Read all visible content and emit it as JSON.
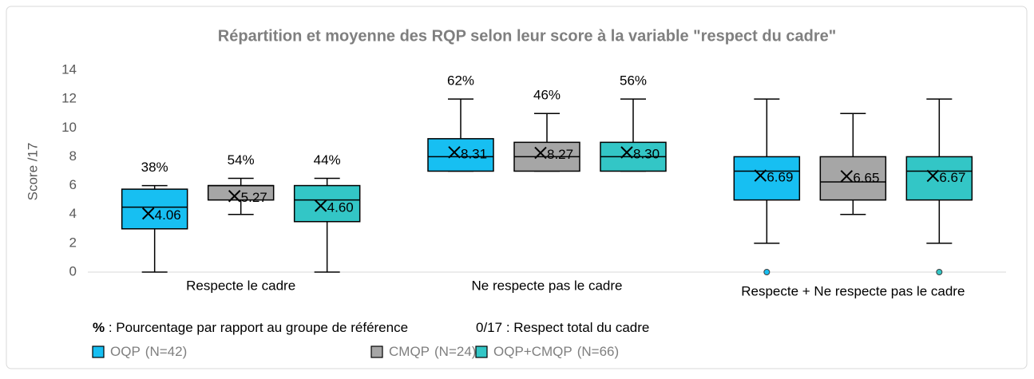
{
  "chart_data": {
    "type": "box",
    "title": "Répartition et moyenne des RQP selon leur score à la variable \"respect du cadre\"",
    "y_label": "Score /17",
    "ylim": [
      0,
      14
    ],
    "yticks": [
      0,
      2,
      4,
      6,
      8,
      10,
      12,
      14
    ],
    "categories": [
      "Respecte le cadre",
      "Ne respecte pas le cadre",
      "Respecte + Ne respecte pas le cadre"
    ],
    "series": [
      {
        "name": "OQP",
        "n_label": "(N=42)",
        "color": "#17bff2",
        "boxes": [
          {
            "min": 0,
            "q1": 3,
            "median": 4.5,
            "q3": 5.75,
            "max": 6,
            "mean": 4.06,
            "mean_label": "4.06",
            "outliers": [],
            "pct": "38%"
          },
          {
            "min": 7,
            "q1": 7,
            "median": 8,
            "q3": 9.25,
            "max": 12,
            "mean": 8.31,
            "mean_label": "8.31",
            "outliers": [],
            "pct": "62%"
          },
          {
            "min": 2,
            "q1": 5,
            "median": 7,
            "q3": 8,
            "max": 12,
            "mean": 6.69,
            "mean_label": "6.69",
            "outliers": [
              0
            ],
            "pct": null
          }
        ]
      },
      {
        "name": "CMQP",
        "n_label": "(N=24)",
        "color": "#a6a6a6",
        "boxes": [
          {
            "min": 4,
            "q1": 5,
            "median": 6,
            "q3": 6,
            "max": 6.5,
            "mean": 5.27,
            "mean_label": "5.27",
            "outliers": [],
            "pct": "54%"
          },
          {
            "min": 7,
            "q1": 7,
            "median": 8,
            "q3": 9,
            "max": 11,
            "mean": 8.27,
            "mean_label": "8.27",
            "outliers": [],
            "pct": "46%"
          },
          {
            "min": 4,
            "q1": 5,
            "median": 6.25,
            "q3": 8,
            "max": 11,
            "mean": 6.65,
            "mean_label": "6.65",
            "outliers": [],
            "pct": null
          }
        ]
      },
      {
        "name": "OQP+CMQP",
        "n_label": "(N=66)",
        "color": "#33c6c6",
        "boxes": [
          {
            "min": 0,
            "q1": 3.5,
            "median": 5,
            "q3": 6,
            "max": 6.5,
            "mean": 4.6,
            "mean_label": "4.60",
            "outliers": [],
            "pct": "44%"
          },
          {
            "min": 7,
            "q1": 7,
            "median": 8,
            "q3": 9,
            "max": 12,
            "mean": 8.3,
            "mean_label": "8.30",
            "outliers": [],
            "pct": "56%"
          },
          {
            "min": 2,
            "q1": 5,
            "median": 7,
            "q3": 8,
            "max": 12,
            "mean": 6.67,
            "mean_label": "6.67",
            "outliers": [
              0
            ],
            "pct": null
          }
        ]
      }
    ],
    "notes": [
      {
        "symbol": "%",
        "text": " : Pourcentage par rapport au groupe de référence"
      },
      {
        "symbol": "0/17",
        "text": " : Respect total du cadre"
      }
    ]
  }
}
